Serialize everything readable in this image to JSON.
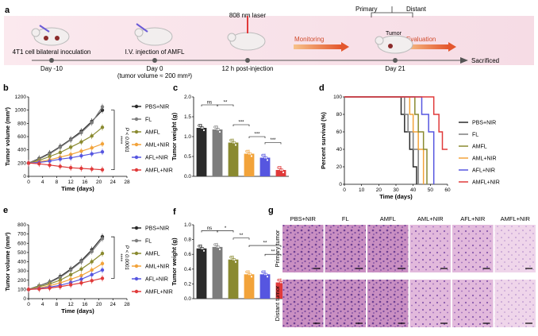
{
  "panel_letters": {
    "a": "a",
    "b": "b",
    "c": "c",
    "d": "d",
    "e": "e",
    "f": "f",
    "g": "g"
  },
  "timeline": {
    "events": [
      {
        "top": "4T1 cell bilateral inoculation",
        "bottom": "Day -10"
      },
      {
        "top": "I.V. injection of AMFL",
        "bottom": "Day 0",
        "bottom2": "(tumor volume ≈ 200 mm³)"
      },
      {
        "top": "808 nm laser",
        "bottom": "12 h post-injection"
      },
      {
        "top": "",
        "bottom": "Day 21"
      }
    ],
    "monitoring_label": "Monitoring",
    "evaluation_label": "Evaluation",
    "end_label": "Sacrificed",
    "primary_label": "Primary",
    "distant_label": "Distant",
    "tumor_label": "Tumor"
  },
  "groups": [
    "PBS+NIR",
    "FL",
    "AMFL",
    "AML+NIR",
    "AFL+NIR",
    "AMFL+NIR"
  ],
  "group_colors": {
    "PBS+NIR": "#2b2b2b",
    "FL": "#7d7d7d",
    "AMFL": "#8a8a30",
    "AML+NIR": "#f2a33a",
    "AFL+NIR": "#5656e0",
    "AMFL+NIR": "#e03a3a"
  },
  "stats": {
    "p_label": "P < 0.0001",
    "stars4": "****",
    "stars3": "***",
    "stars2": "**",
    "stars1": "*",
    "ns": "ns"
  },
  "chart_data": [
    {
      "id": "b",
      "type": "line",
      "xlabel": "Time (days)",
      "ylabel": "Tumor  volume (mm³)",
      "xlim": [
        0,
        28
      ],
      "ylim": [
        0,
        1200
      ],
      "xticks": [
        0,
        4,
        8,
        12,
        16,
        20,
        24,
        28
      ],
      "yticks": [
        0,
        200,
        400,
        600,
        800,
        1000,
        1200
      ],
      "x": [
        0,
        3,
        6,
        9,
        12,
        15,
        18,
        21
      ],
      "series": [
        {
          "name": "PBS+NIR",
          "values": [
            200,
            270,
            350,
            450,
            560,
            680,
            830,
            1000
          ]
        },
        {
          "name": "FL",
          "values": [
            200,
            260,
            340,
            440,
            550,
            660,
            810,
            1050
          ]
        },
        {
          "name": "AMFL",
          "values": [
            200,
            240,
            300,
            360,
            440,
            520,
            610,
            740
          ]
        },
        {
          "name": "AML+NIR",
          "values": [
            200,
            220,
            250,
            290,
            330,
            380,
            430,
            490
          ]
        },
        {
          "name": "AFL+NIR",
          "values": [
            200,
            210,
            230,
            260,
            280,
            310,
            340,
            370
          ]
        },
        {
          "name": "AMFL+NIR",
          "values": [
            200,
            190,
            170,
            150,
            130,
            120,
            110,
            100
          ]
        }
      ]
    },
    {
      "id": "c",
      "type": "bar",
      "ylabel": "Tumor weight (g)",
      "ylim": [
        0,
        2.0
      ],
      "yticks": [
        0.0,
        0.5,
        1.0,
        1.5,
        2.0
      ],
      "categories": [
        "PBS+NIR",
        "FL",
        "AMFL",
        "AML+NIR",
        "AFL+NIR",
        "AMFL+NIR"
      ],
      "values": [
        1.22,
        1.18,
        0.85,
        0.57,
        0.47,
        0.16
      ]
    },
    {
      "id": "d",
      "type": "line",
      "xlabel": "Time (days)",
      "ylabel": "Percent survival (%)",
      "xlim": [
        0,
        60
      ],
      "ylim": [
        0,
        100
      ],
      "xticks": [
        0,
        10,
        20,
        30,
        40,
        50,
        60
      ],
      "yticks": [
        0,
        20,
        40,
        60,
        80,
        100
      ],
      "series": [
        {
          "name": "PBS+NIR",
          "points": [
            [
              0,
              100
            ],
            [
              33,
              100
            ],
            [
              33,
              80
            ],
            [
              35,
              80
            ],
            [
              35,
              60
            ],
            [
              38,
              60
            ],
            [
              38,
              40
            ],
            [
              40,
              40
            ],
            [
              40,
              20
            ],
            [
              42,
              20
            ],
            [
              42,
              0
            ]
          ]
        },
        {
          "name": "FL",
          "points": [
            [
              0,
              100
            ],
            [
              35,
              100
            ],
            [
              35,
              80
            ],
            [
              37,
              80
            ],
            [
              37,
              60
            ],
            [
              40,
              60
            ],
            [
              40,
              40
            ],
            [
              43,
              40
            ],
            [
              43,
              0
            ]
          ]
        },
        {
          "name": "AML+NIR",
          "points": [
            [
              0,
              100
            ],
            [
              38,
              100
            ],
            [
              38,
              80
            ],
            [
              40,
              80
            ],
            [
              40,
              60
            ],
            [
              43,
              60
            ],
            [
              43,
              40
            ],
            [
              46,
              40
            ],
            [
              46,
              0
            ]
          ]
        },
        {
          "name": "AMFL",
          "points": [
            [
              0,
              100
            ],
            [
              41,
              100
            ],
            [
              41,
              80
            ],
            [
              43,
              80
            ],
            [
              43,
              60
            ],
            [
              46,
              60
            ],
            [
              46,
              40
            ],
            [
              48,
              40
            ],
            [
              48,
              0
            ]
          ]
        },
        {
          "name": "AFL+NIR",
          "points": [
            [
              0,
              100
            ],
            [
              45,
              100
            ],
            [
              45,
              80
            ],
            [
              49,
              80
            ],
            [
              49,
              60
            ],
            [
              52,
              60
            ],
            [
              52,
              0
            ]
          ]
        },
        {
          "name": "AMFL+NIR",
          "points": [
            [
              0,
              100
            ],
            [
              52,
              100
            ],
            [
              52,
              80
            ],
            [
              55,
              80
            ],
            [
              55,
              60
            ],
            [
              57,
              60
            ],
            [
              57,
              40
            ],
            [
              60,
              40
            ]
          ]
        }
      ]
    },
    {
      "id": "e",
      "type": "line",
      "xlabel": "Time (days)",
      "ylabel": "Tumor  volume (mm³)",
      "xlim": [
        0,
        28
      ],
      "ylim": [
        0,
        800
      ],
      "xticks": [
        0,
        4,
        8,
        12,
        16,
        20,
        24,
        28
      ],
      "yticks": [
        0,
        100,
        200,
        300,
        400,
        500,
        600,
        700,
        800
      ],
      "x": [
        0,
        3,
        6,
        9,
        12,
        15,
        18,
        21
      ],
      "series": [
        {
          "name": "PBS+NIR",
          "values": [
            100,
            140,
            180,
            240,
            320,
            410,
            530,
            670
          ]
        },
        {
          "name": "FL",
          "values": [
            100,
            140,
            175,
            230,
            310,
            400,
            510,
            650
          ]
        },
        {
          "name": "AMFL",
          "values": [
            100,
            130,
            160,
            200,
            260,
            320,
            400,
            490
          ]
        },
        {
          "name": "AML+NIR",
          "values": [
            100,
            115,
            140,
            170,
            210,
            250,
            310,
            380
          ]
        },
        {
          "name": "AFL+NIR",
          "values": [
            100,
            110,
            125,
            145,
            175,
            210,
            260,
            310
          ]
        },
        {
          "name": "AMFL+NIR",
          "values": [
            100,
            105,
            115,
            130,
            150,
            170,
            195,
            220
          ]
        }
      ]
    },
    {
      "id": "f",
      "type": "bar",
      "ylabel": "Tumor weight (g)",
      "ylim": [
        0,
        1.0
      ],
      "yticks": [
        0.0,
        0.2,
        0.4,
        0.6,
        0.8,
        1.0
      ],
      "categories": [
        "PBS+NIR",
        "FL",
        "AMFL",
        "AML+NIR",
        "AFL+NIR",
        "AMFL+NIR"
      ],
      "values": [
        0.68,
        0.7,
        0.53,
        0.33,
        0.33,
        0.22
      ]
    }
  ],
  "histology": {
    "columns": [
      "PBS+NIR",
      "FL",
      "AMFL",
      "AML+NIR",
      "AFL+NIR",
      "AMFL+NIR"
    ],
    "rows": [
      "Primary tumor",
      "Distant tumor"
    ]
  }
}
